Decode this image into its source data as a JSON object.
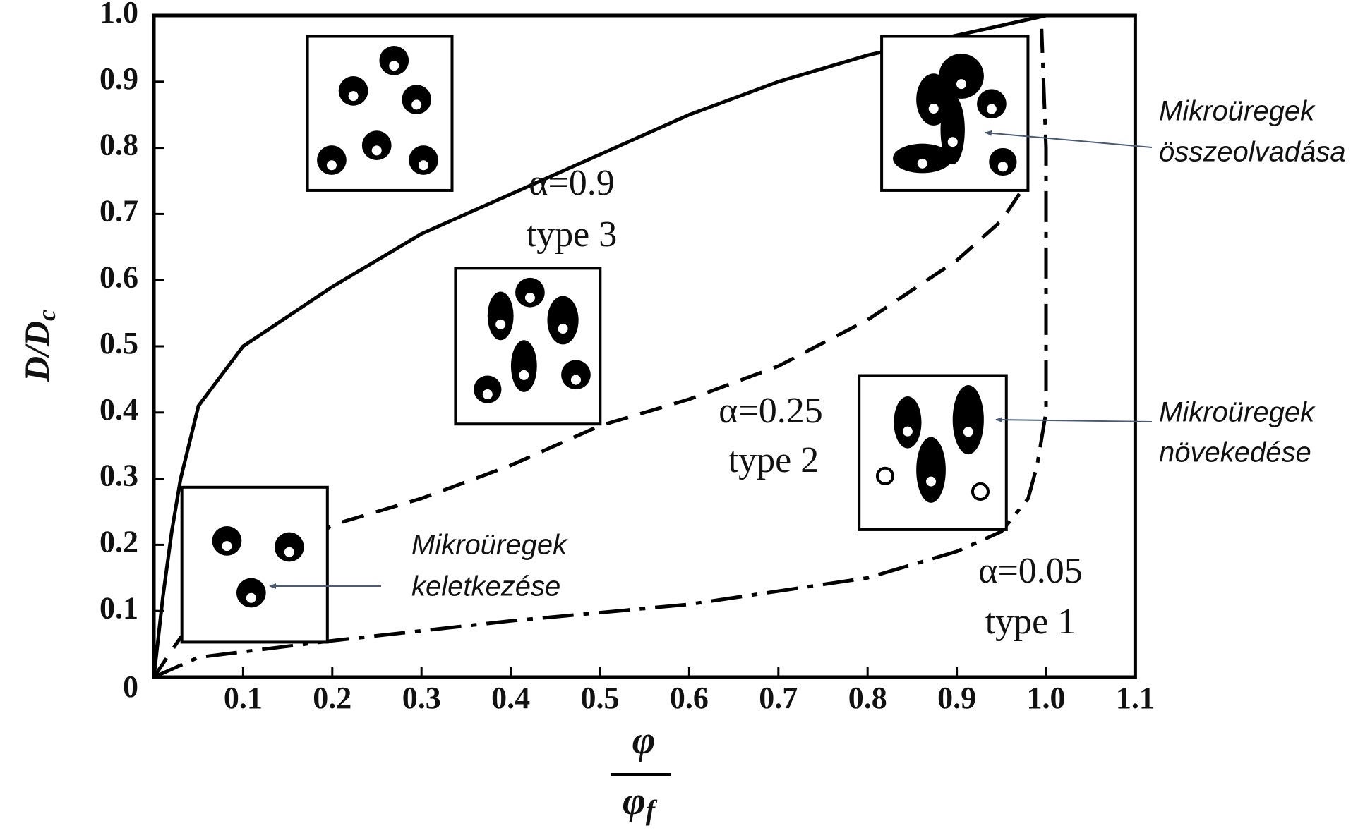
{
  "chart_data": {
    "type": "line",
    "ylabel": "D/D",
    "ylabel_sub": "c",
    "xlabel_numerator": "φ",
    "xlabel_denominator": "φ",
    "xlabel_denominator_sub": "f",
    "xlim": [
      0,
      1.1
    ],
    "ylim": [
      0,
      1
    ],
    "xticks": [
      0.1,
      0.2,
      0.3,
      0.4,
      0.5,
      0.6,
      0.7,
      0.8,
      0.9,
      {
        "value": 1,
        "label": "1.0"
      },
      1.1
    ],
    "yticks": [
      0,
      0.1,
      0.2,
      0.3,
      0.4,
      0.5,
      0.6,
      0.7,
      0.8,
      0.9,
      {
        "value": 1,
        "label": "1.0"
      }
    ],
    "series": [
      {
        "name": "α=0.9",
        "color": "#000000",
        "style": "solid",
        "x": [
          0,
          0.01,
          0.02,
          0.03,
          0.05,
          0.1,
          0.2,
          0.3,
          0.4,
          0.5,
          0.6,
          0.7,
          0.8,
          0.9,
          1.0
        ],
        "values": [
          0,
          0.12,
          0.22,
          0.3,
          0.41,
          0.5,
          0.59,
          0.67,
          0.73,
          0.79,
          0.85,
          0.9,
          0.94,
          0.97,
          1.0
        ]
      },
      {
        "name": "α=0.25",
        "color": "#000000",
        "style": "dashed",
        "x": [
          0,
          0.03,
          0.2,
          0.3,
          0.4,
          0.5,
          0.6,
          0.7,
          0.8,
          0.9,
          0.95,
          0.98
        ],
        "values": [
          0,
          0.06,
          0.23,
          0.27,
          0.32,
          0.38,
          0.42,
          0.47,
          0.54,
          0.63,
          0.69,
          0.75
        ]
      },
      {
        "name": "α=0.05",
        "color": "#000000",
        "style": "dashdot",
        "x": [
          0,
          0.05,
          0.2,
          0.4,
          0.6,
          0.8,
          0.9,
          0.95,
          0.98,
          0.99,
          1.0,
          1.0,
          1.0,
          0.995
        ],
        "values": [
          0,
          0.03,
          0.055,
          0.085,
          0.11,
          0.15,
          0.19,
          0.22,
          0.27,
          0.32,
          0.4,
          0.6,
          0.8,
          0.98
        ]
      }
    ],
    "annotations": [
      "α=0.9",
      "type 3",
      "α=0.25",
      "type 2",
      "α=0.05",
      "type 1"
    ],
    "callouts": [
      "Mikroüregek",
      "összeolvadása",
      "Mikroüregek",
      "növekedése",
      "Mikroüregek",
      "keletkezése"
    ]
  }
}
